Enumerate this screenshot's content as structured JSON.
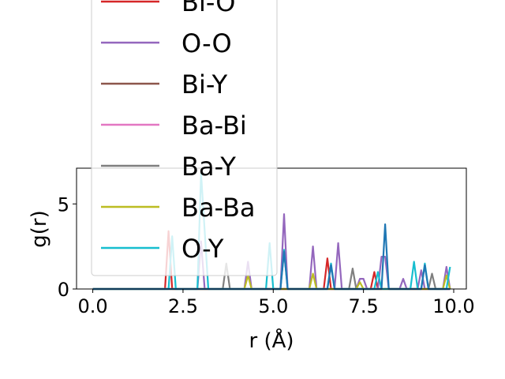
{
  "chart_data": {
    "type": "line",
    "xlabel": "r (Å)",
    "ylabel": "g(r)",
    "xlim": [
      -0.45,
      10.35
    ],
    "ylim": [
      0,
      7.1
    ],
    "xticks": [
      0.0,
      2.5,
      5.0,
      7.5,
      10.0
    ],
    "xtick_labels": [
      "0.0",
      "2.5",
      "5.0",
      "7.5",
      "10.0"
    ],
    "yticks": [
      0,
      5
    ],
    "ytick_labels": [
      "0",
      "5"
    ],
    "grid": false,
    "legend_position": "upper-left (overlapping plot)",
    "series": [
      {
        "name": "Bi-O",
        "color": "#d62728",
        "points": [
          [
            0,
            0
          ],
          [
            2.0,
            0
          ],
          [
            2.1,
            3.4
          ],
          [
            2.2,
            0
          ],
          [
            6.4,
            0
          ],
          [
            6.5,
            1.8
          ],
          [
            6.6,
            0
          ],
          [
            7.7,
            0
          ],
          [
            7.8,
            1.0
          ],
          [
            7.9,
            0
          ],
          [
            9.9,
            0
          ]
        ]
      },
      {
        "name": "O-O",
        "color": "#9467bd",
        "points": [
          [
            0,
            0
          ],
          [
            2.9,
            0
          ],
          [
            3.0,
            2.8
          ],
          [
            3.1,
            0
          ],
          [
            4.2,
            0
          ],
          [
            4.3,
            1.6
          ],
          [
            4.4,
            0
          ],
          [
            5.2,
            0
          ],
          [
            5.3,
            4.4
          ],
          [
            5.4,
            0
          ],
          [
            6.0,
            0
          ],
          [
            6.1,
            2.5
          ],
          [
            6.2,
            0
          ],
          [
            6.7,
            0
          ],
          [
            6.8,
            2.7
          ],
          [
            6.9,
            0
          ],
          [
            7.3,
            0
          ],
          [
            7.4,
            0.6
          ],
          [
            7.5,
            0.6
          ],
          [
            7.6,
            0
          ],
          [
            7.9,
            0
          ],
          [
            8.0,
            1.9
          ],
          [
            8.1,
            1.9
          ],
          [
            8.2,
            0
          ],
          [
            8.5,
            0
          ],
          [
            8.6,
            0.6
          ],
          [
            8.7,
            0
          ],
          [
            9.0,
            0
          ],
          [
            9.1,
            1.1
          ],
          [
            9.2,
            0
          ],
          [
            9.7,
            0
          ],
          [
            9.8,
            1.3
          ],
          [
            9.9,
            0
          ]
        ]
      },
      {
        "name": "Bi-Y",
        "color": "#8c564b",
        "points": [
          [
            0,
            0
          ],
          [
            9.9,
            0
          ]
        ]
      },
      {
        "name": "Ba-Bi",
        "color": "#e377c2",
        "points": [
          [
            0,
            0
          ],
          [
            9.9,
            0
          ]
        ]
      },
      {
        "name": "Ba-Y",
        "color": "#7f7f7f",
        "points": [
          [
            0,
            0
          ],
          [
            3.6,
            0
          ],
          [
            3.7,
            1.5
          ],
          [
            3.8,
            0
          ],
          [
            7.1,
            0
          ],
          [
            7.2,
            1.2
          ],
          [
            7.3,
            0
          ],
          [
            9.3,
            0
          ],
          [
            9.4,
            0.9
          ],
          [
            9.5,
            0
          ],
          [
            9.9,
            0
          ]
        ]
      },
      {
        "name": "Ba-Ba",
        "color": "#bcbd22",
        "points": [
          [
            0,
            0
          ],
          [
            4.2,
            0
          ],
          [
            4.3,
            0.8
          ],
          [
            4.4,
            0
          ],
          [
            6.0,
            0
          ],
          [
            6.1,
            0.9
          ],
          [
            6.2,
            0
          ],
          [
            7.3,
            0
          ],
          [
            7.4,
            0.4
          ],
          [
            7.5,
            0
          ],
          [
            9.7,
            0
          ],
          [
            9.8,
            0.8
          ],
          [
            9.9,
            0
          ]
        ]
      },
      {
        "name": "O-Y",
        "color": "#17becf",
        "points": [
          [
            0,
            0
          ],
          [
            2.1,
            0
          ],
          [
            2.2,
            3.1
          ],
          [
            2.3,
            0
          ],
          [
            2.9,
            0
          ],
          [
            3.0,
            6.8
          ],
          [
            3.1,
            3.4
          ],
          [
            3.2,
            0
          ],
          [
            4.8,
            0
          ],
          [
            4.9,
            2.7
          ],
          [
            5.0,
            0
          ],
          [
            5.2,
            0
          ],
          [
            5.3,
            2.3
          ],
          [
            5.4,
            0
          ],
          [
            6.5,
            0
          ],
          [
            6.6,
            1.5
          ],
          [
            6.7,
            0
          ],
          [
            7.8,
            0
          ],
          [
            7.9,
            1.0
          ],
          [
            8.0,
            0
          ],
          [
            8.8,
            0
          ],
          [
            8.9,
            1.6
          ],
          [
            9.0,
            0
          ],
          [
            9.1,
            0
          ],
          [
            9.2,
            1.5
          ],
          [
            9.3,
            0
          ],
          [
            9.8,
            0
          ],
          [
            9.9,
            1.3
          ]
        ]
      },
      {
        "name": "",
        "color": "#1f77b4",
        "points": [
          [
            0,
            0
          ],
          [
            5.2,
            0
          ],
          [
            5.3,
            2.2
          ],
          [
            5.4,
            0
          ],
          [
            6.5,
            0
          ],
          [
            6.6,
            1.4
          ],
          [
            6.7,
            0
          ],
          [
            8.0,
            0
          ],
          [
            8.1,
            3.8
          ],
          [
            8.2,
            0
          ],
          [
            9.1,
            0
          ],
          [
            9.2,
            1.4
          ],
          [
            9.3,
            0
          ],
          [
            9.9,
            0
          ]
        ]
      }
    ]
  }
}
